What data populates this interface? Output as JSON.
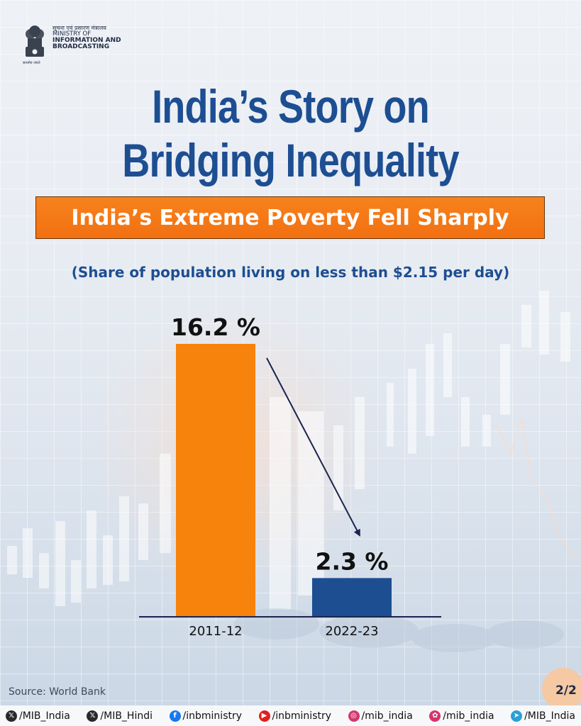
{
  "header": {
    "org_hindi": "सूचना एवं प्रसारण मंत्रालय",
    "org_line1": "MINISTRY OF",
    "org_line2": "INFORMATION AND",
    "org_line3": "BROADCASTING",
    "motto": "सत्यमेव जयते",
    "title_line1": "India’s Story on",
    "title_line2": "Bridging Inequality"
  },
  "banner": {
    "text": "India’s Extreme Poverty Fell Sharply"
  },
  "colors": {
    "title_blue": "#1d4e92",
    "banner_orange": "#f47a16",
    "bar_orange": "#f7820c",
    "bar_blue": "#1d4e92",
    "axis": "#1a2450"
  },
  "chart_data": {
    "type": "bar",
    "title": "India’s Extreme Poverty Fell Sharply",
    "subtitle": "(Share of population living on less than $2.15 per day)",
    "categories": [
      "2011-12",
      "2022-23"
    ],
    "values": [
      16.2,
      2.3
    ],
    "data_labels": [
      "16.2 %",
      "2.3 %"
    ],
    "bar_colors": [
      "#f7820c",
      "#1d4e92"
    ],
    "ylim": [
      0,
      16.2
    ],
    "grid": false,
    "annotation": "arrow-from-first-to-second-bar"
  },
  "footer": {
    "source": "Source: World Bank",
    "page": "2/2",
    "socials": [
      {
        "icon": "x-icon",
        "handle": "/MIB_India",
        "color": "#2a2a2a"
      },
      {
        "icon": "x-icon",
        "handle": "/MIB_Hindi",
        "color": "#2a2a2a"
      },
      {
        "icon": "facebook-icon",
        "handle": "/inbministry",
        "color": "#1877f2"
      },
      {
        "icon": "youtube-icon",
        "handle": "/inbministry",
        "color": "#e02020"
      },
      {
        "icon": "instagram-icon",
        "handle": "/mib_india",
        "color": "#d3376d"
      },
      {
        "icon": "kooapp-icon",
        "handle": "/mib_india",
        "color": "#d6336c"
      },
      {
        "icon": "telegram-icon",
        "handle": "/MIB_India",
        "color": "#2a9fd8"
      }
    ]
  }
}
